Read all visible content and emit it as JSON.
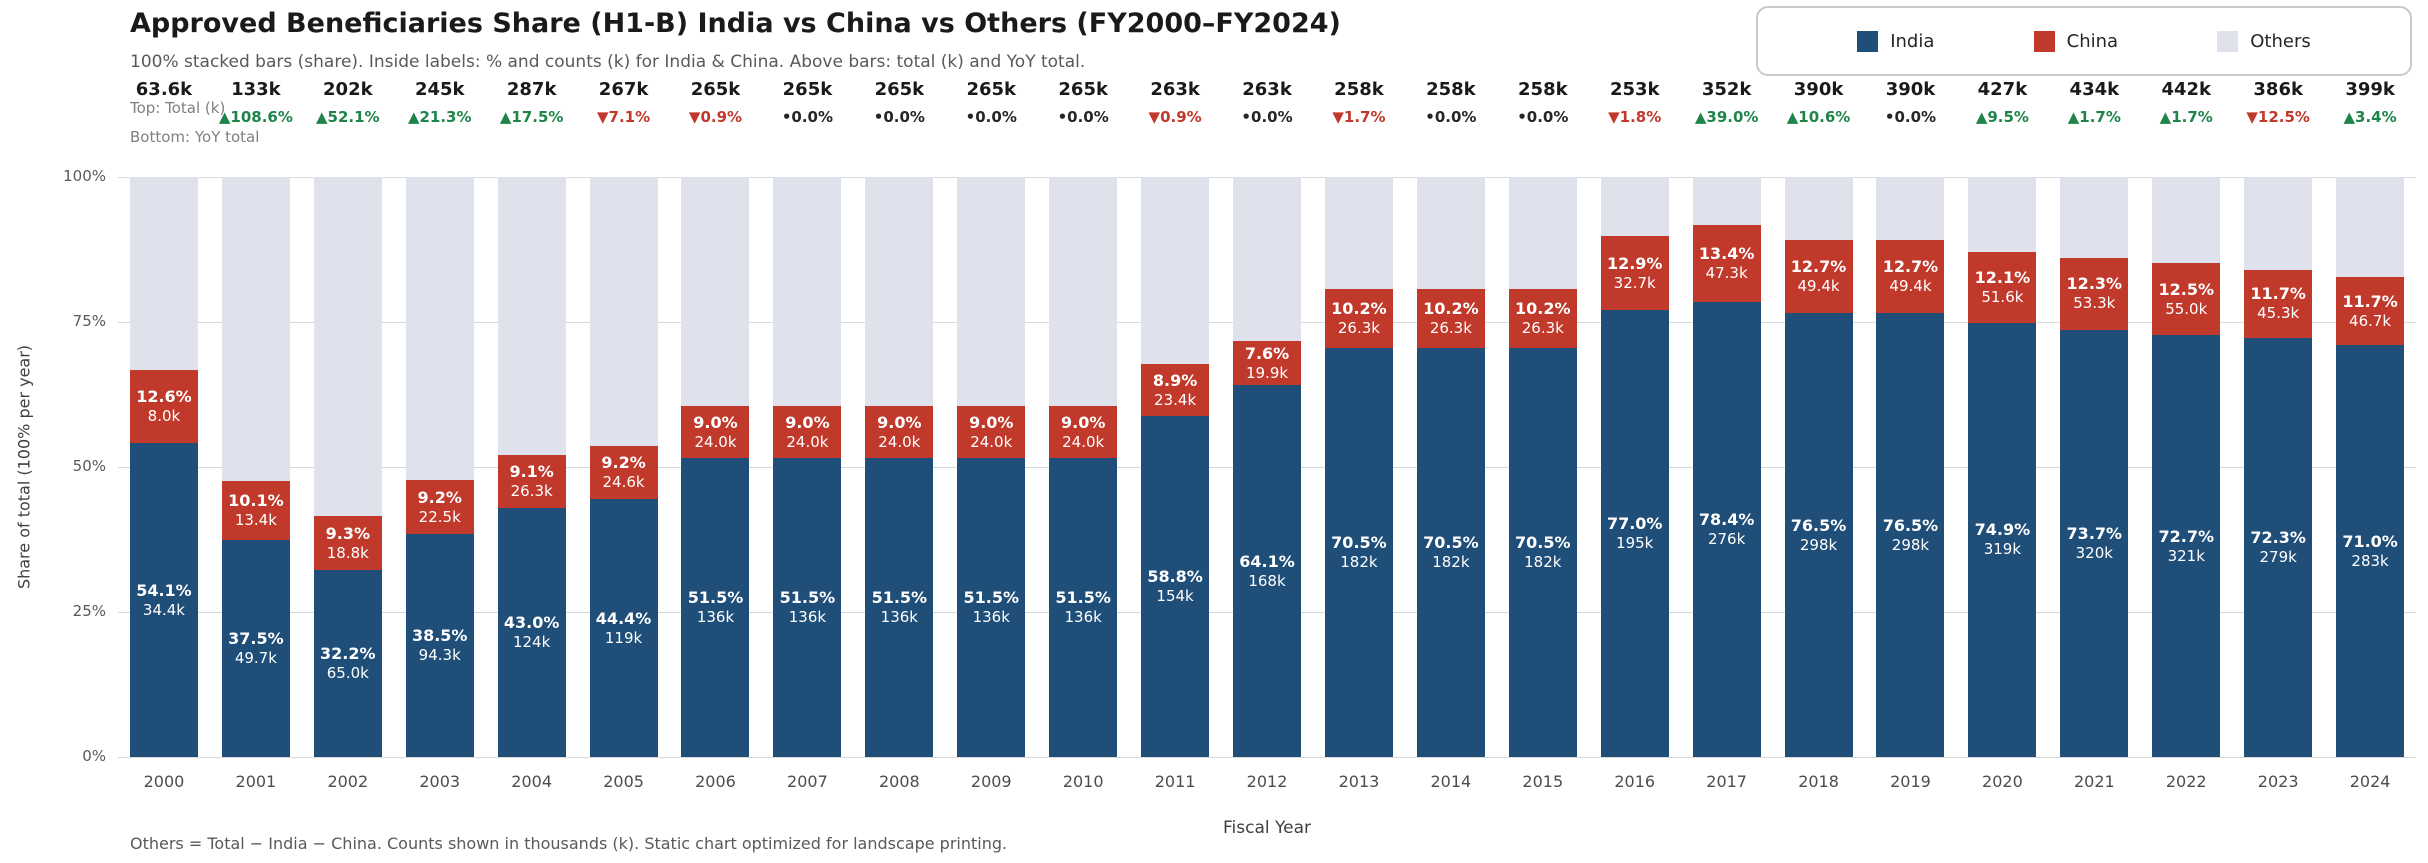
{
  "header": {
    "title": "Approved Beneficiaries Share (H1-B) India vs China vs Others (FY2000–FY2024)",
    "subtitle": "100% stacked bars (share). Inside labels: % and counts (k) for India & China. Above bars: total (k) and YoY total.",
    "annotation_top": "Top: Total (k)",
    "annotation_bottom": "Bottom: YoY total"
  },
  "legend": {
    "items": [
      {
        "label": "India",
        "color": "#1f4e79"
      },
      {
        "label": "China",
        "color": "#c0392b"
      },
      {
        "label": "Others",
        "color": "#dfe2ed"
      }
    ]
  },
  "axes": {
    "ylabel": "Share of total (100% per year)",
    "xlabel": "Fiscal Year",
    "yticks": [
      "0%",
      "25%",
      "50%",
      "75%",
      "100%"
    ]
  },
  "footer": {
    "note": "Others = Total − India − China. Counts shown in thousands (k). Static chart optimized for landscape printing."
  },
  "colors": {
    "yoy_up": "#1e8449",
    "yoy_down": "#c0392b",
    "yoy_flat": "#262626"
  },
  "chart_data": {
    "type": "bar",
    "stacked": true,
    "title": "Approved Beneficiaries Share (H1-B) India vs China vs Others (FY2000–FY2024)",
    "xlabel": "Fiscal Year",
    "ylabel": "Share of total (100% per year)",
    "ylim": [
      0,
      100
    ],
    "legend_position": "top-right",
    "grid": true,
    "categories": [
      2000,
      2001,
      2002,
      2003,
      2004,
      2005,
      2006,
      2007,
      2008,
      2009,
      2010,
      2011,
      2012,
      2013,
      2014,
      2015,
      2016,
      2017,
      2018,
      2019,
      2020,
      2021,
      2022,
      2023,
      2024
    ],
    "totals": [
      "63.6k",
      "133k",
      "202k",
      "245k",
      "287k",
      "267k",
      "265k",
      "265k",
      "265k",
      "265k",
      "265k",
      "263k",
      "263k",
      "258k",
      "258k",
      "258k",
      "253k",
      "352k",
      "390k",
      "390k",
      "427k",
      "434k",
      "442k",
      "386k",
      "399k"
    ],
    "yoy": [
      null,
      {
        "dir": "up",
        "value": "108.6%"
      },
      {
        "dir": "up",
        "value": "52.1%"
      },
      {
        "dir": "up",
        "value": "21.3%"
      },
      {
        "dir": "up",
        "value": "17.5%"
      },
      {
        "dir": "down",
        "value": "7.1%"
      },
      {
        "dir": "down",
        "value": "0.9%"
      },
      {
        "dir": "flat",
        "value": "0.0%"
      },
      {
        "dir": "flat",
        "value": "0.0%"
      },
      {
        "dir": "flat",
        "value": "0.0%"
      },
      {
        "dir": "flat",
        "value": "0.0%"
      },
      {
        "dir": "down",
        "value": "0.9%"
      },
      {
        "dir": "flat",
        "value": "0.0%"
      },
      {
        "dir": "down",
        "value": "1.7%"
      },
      {
        "dir": "flat",
        "value": "0.0%"
      },
      {
        "dir": "flat",
        "value": "0.0%"
      },
      {
        "dir": "down",
        "value": "1.8%"
      },
      {
        "dir": "up",
        "value": "39.0%"
      },
      {
        "dir": "up",
        "value": "10.6%"
      },
      {
        "dir": "flat",
        "value": "0.0%"
      },
      {
        "dir": "up",
        "value": "9.5%"
      },
      {
        "dir": "up",
        "value": "1.7%"
      },
      {
        "dir": "up",
        "value": "1.7%"
      },
      {
        "dir": "down",
        "value": "12.5%"
      },
      {
        "dir": "up",
        "value": "3.4%"
      }
    ],
    "series": [
      {
        "name": "India",
        "color": "#1f4e79",
        "share_pct": [
          54.1,
          37.5,
          32.2,
          38.5,
          43.0,
          44.4,
          51.5,
          51.5,
          51.5,
          51.5,
          51.5,
          58.8,
          64.1,
          70.5,
          70.5,
          70.5,
          77.0,
          78.4,
          76.5,
          76.5,
          74.9,
          73.7,
          72.7,
          72.3,
          71.0
        ],
        "count_labels": [
          "34.4k",
          "49.7k",
          "65.0k",
          "94.3k",
          "124k",
          "119k",
          "136k",
          "136k",
          "136k",
          "136k",
          "136k",
          "154k",
          "168k",
          "182k",
          "182k",
          "182k",
          "195k",
          "276k",
          "298k",
          "298k",
          "319k",
          "320k",
          "321k",
          "279k",
          "283k"
        ]
      },
      {
        "name": "China",
        "color": "#c0392b",
        "share_pct": [
          12.6,
          10.1,
          9.3,
          9.2,
          9.1,
          9.2,
          9.0,
          9.0,
          9.0,
          9.0,
          9.0,
          8.9,
          7.6,
          10.2,
          10.2,
          10.2,
          12.9,
          13.4,
          12.7,
          12.7,
          12.1,
          12.3,
          12.5,
          11.7,
          11.7
        ],
        "count_labels": [
          "8.0k",
          "13.4k",
          "18.8k",
          "22.5k",
          "26.3k",
          "24.6k",
          "24.0k",
          "24.0k",
          "24.0k",
          "24.0k",
          "24.0k",
          "23.4k",
          "19.9k",
          "26.3k",
          "26.3k",
          "26.3k",
          "32.7k",
          "47.3k",
          "49.4k",
          "49.4k",
          "51.6k",
          "53.3k",
          "55.0k",
          "45.3k",
          "46.7k"
        ]
      },
      {
        "name": "Others",
        "color": "#dfe2ed",
        "share_pct_rule": "remainder: 100 − India − China"
      }
    ]
  }
}
